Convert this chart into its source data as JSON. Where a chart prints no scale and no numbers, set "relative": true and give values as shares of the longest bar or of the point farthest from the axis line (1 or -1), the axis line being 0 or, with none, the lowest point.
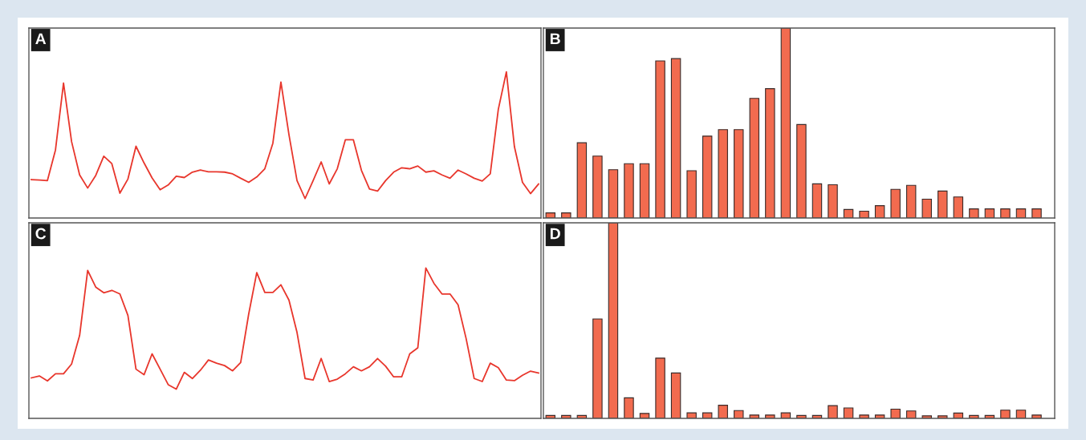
{
  "chart_data": [
    {
      "type": "line",
      "title": "A",
      "relative": true,
      "color": "#e8362c",
      "categories": [
        null,
        null,
        null,
        null,
        null,
        null,
        null,
        null,
        null,
        null,
        null,
        null,
        null,
        null,
        null,
        null,
        null,
        null,
        null,
        null,
        null,
        null,
        null,
        null,
        null,
        null,
        null,
        null,
        null,
        null,
        null,
        null,
        null,
        null,
        null,
        null,
        null,
        null,
        null,
        null,
        null,
        null,
        null,
        null,
        null,
        null,
        null,
        null,
        null,
        null,
        null,
        null,
        null,
        null,
        null,
        null,
        null,
        null,
        null,
        null,
        null,
        null,
        null,
        null
      ],
      "values": [
        0.263,
        0.26,
        0.256,
        0.465,
        0.923,
        0.523,
        0.295,
        0.205,
        0.291,
        0.423,
        0.372,
        0.17,
        0.267,
        0.491,
        0.377,
        0.274,
        0.193,
        0.226,
        0.286,
        0.277,
        0.314,
        0.328,
        0.316,
        0.316,
        0.314,
        0.302,
        0.272,
        0.244,
        0.281,
        0.337,
        0.512,
        0.93,
        0.57,
        0.256,
        0.133,
        0.256,
        0.384,
        0.233,
        0.337,
        0.535,
        0.535,
        0.326,
        0.198,
        0.184,
        0.256,
        0.314,
        0.344,
        0.337,
        0.356,
        0.314,
        0.323,
        0.295,
        0.272,
        0.328,
        0.302,
        0.272,
        0.253,
        0.302,
        0.744,
        1,
        0.488,
        0.244,
        0.167,
        0.233
      ]
    },
    {
      "type": "bar",
      "title": "B",
      "relative": true,
      "color": "#f26b4f",
      "categories": [
        null,
        null,
        null,
        null,
        null,
        null,
        null,
        null,
        null,
        null,
        null,
        null,
        null,
        null,
        null,
        null,
        null,
        null,
        null,
        null,
        null,
        null,
        null,
        null,
        null,
        null,
        null,
        null,
        null,
        null,
        null,
        null
      ],
      "values": [
        0.027,
        0.027,
        0.396,
        0.326,
        0.254,
        0.286,
        0.286,
        0.827,
        0.839,
        0.249,
        0.431,
        0.465,
        0.465,
        0.63,
        0.681,
        1,
        0.492,
        0.18,
        0.175,
        0.045,
        0.036,
        0.065,
        0.151,
        0.172,
        0.099,
        0.142,
        0.111,
        0.048,
        0.048,
        0.048,
        0.048,
        0.048
      ]
    },
    {
      "type": "line",
      "title": "C",
      "relative": true,
      "color": "#e8362c",
      "categories": [
        null,
        null,
        null,
        null,
        null,
        null,
        null,
        null,
        null,
        null,
        null,
        null,
        null,
        null,
        null,
        null,
        null,
        null,
        null,
        null,
        null,
        null,
        null,
        null,
        null,
        null,
        null,
        null,
        null,
        null,
        null,
        null,
        null,
        null,
        null,
        null,
        null,
        null,
        null,
        null,
        null,
        null,
        null,
        null,
        null,
        null,
        null,
        null,
        null,
        null,
        null,
        null,
        null,
        null,
        null,
        null,
        null,
        null,
        null,
        null,
        null,
        null,
        null,
        null
      ],
      "values": [
        0.269,
        0.282,
        0.249,
        0.296,
        0.296,
        0.361,
        0.551,
        0.984,
        0.873,
        0.835,
        0.851,
        0.827,
        0.684,
        0.327,
        0.29,
        0.429,
        0.327,
        0.224,
        0.194,
        0.306,
        0.265,
        0.32,
        0.388,
        0.367,
        0.351,
        0.316,
        0.371,
        0.694,
        0.969,
        0.837,
        0.837,
        0.888,
        0.786,
        0.571,
        0.265,
        0.255,
        0.398,
        0.245,
        0.261,
        0.296,
        0.343,
        0.316,
        0.343,
        0.398,
        0.347,
        0.276,
        0.276,
        0.429,
        0.469,
        1,
        0.898,
        0.827,
        0.827,
        0.755,
        0.531,
        0.265,
        0.245,
        0.367,
        0.337,
        0.255,
        0.251,
        0.286,
        0.314,
        0.302
      ]
    },
    {
      "type": "bar",
      "title": "D",
      "relative": true,
      "color": "#f26b4f",
      "categories": [
        null,
        null,
        null,
        null,
        null,
        null,
        null,
        null,
        null,
        null,
        null,
        null,
        null,
        null,
        null,
        null,
        null,
        null,
        null,
        null,
        null,
        null,
        null,
        null,
        null,
        null,
        null,
        null,
        null,
        null,
        null,
        null
      ],
      "values": [
        0.015,
        0.015,
        0.015,
        0.508,
        1,
        0.105,
        0.025,
        0.308,
        0.232,
        0.028,
        0.028,
        0.067,
        0.04,
        0.017,
        0.017,
        0.028,
        0.015,
        0.015,
        0.065,
        0.053,
        0.017,
        0.017,
        0.047,
        0.038,
        0.013,
        0.013,
        0.027,
        0.015,
        0.015,
        0.042,
        0.042,
        0.017
      ]
    }
  ]
}
